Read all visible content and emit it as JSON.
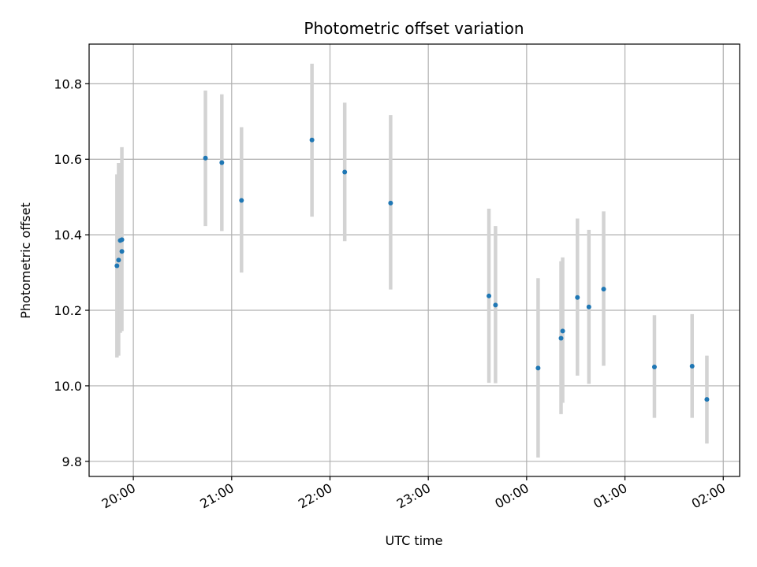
{
  "chart_data": {
    "type": "scatter",
    "title": "Photometric offset variation",
    "xlabel": "UTC time",
    "ylabel": "Photometric offset",
    "grid": true,
    "colors": {
      "point": "#1f77b4",
      "errorbar": "#d3d3d3",
      "grid": "#b0b0b0"
    },
    "x_ticks": [
      "20:00",
      "21:00",
      "22:00",
      "23:00",
      "00:00",
      "01:00",
      "02:00"
    ],
    "y_ticks": [
      "9.8",
      "10.0",
      "10.2",
      "10.4",
      "10.6",
      "10.8"
    ],
    "xlim": [
      "19:33",
      "02:10"
    ],
    "ylim": [
      9.76,
      10.905
    ],
    "points": [
      {
        "time": "19:50",
        "y": 10.318,
        "err_low": 10.075,
        "err_high": 10.56
      },
      {
        "time": "19:51",
        "y": 10.333,
        "err_low": 10.08,
        "err_high": 10.59
      },
      {
        "time": "19:52",
        "y": 10.385,
        "err_low": 10.14,
        "err_high": 10.38
      },
      {
        "time": "19:53",
        "y": 10.387,
        "err_low": 10.145,
        "err_high": 10.632
      },
      {
        "time": "19:53",
        "y": 10.356,
        "err_low": 10.355,
        "err_high": 10.357
      },
      {
        "time": "20:44",
        "y": 10.603,
        "err_low": 10.423,
        "err_high": 10.782
      },
      {
        "time": "20:54",
        "y": 10.591,
        "err_low": 10.41,
        "err_high": 10.772
      },
      {
        "time": "21:06",
        "y": 10.491,
        "err_low": 10.3,
        "err_high": 10.685
      },
      {
        "time": "21:49",
        "y": 10.651,
        "err_low": 10.448,
        "err_high": 10.853
      },
      {
        "time": "22:09",
        "y": 10.566,
        "err_low": 10.383,
        "err_high": 10.75
      },
      {
        "time": "22:37",
        "y": 10.484,
        "err_low": 10.255,
        "err_high": 10.717
      },
      {
        "time": "23:37",
        "y": 10.238,
        "err_low": 10.008,
        "err_high": 10.469
      },
      {
        "time": "23:41",
        "y": 10.214,
        "err_low": 10.007,
        "err_high": 10.423
      },
      {
        "time": "00:07",
        "y": 10.047,
        "err_low": 9.81,
        "err_high": 10.285
      },
      {
        "time": "00:21",
        "y": 10.126,
        "err_low": 9.925,
        "err_high": 10.33
      },
      {
        "time": "00:22",
        "y": 10.145,
        "err_low": 9.955,
        "err_high": 10.34
      },
      {
        "time": "00:31",
        "y": 10.234,
        "err_low": 10.027,
        "err_high": 10.443
      },
      {
        "time": "00:38",
        "y": 10.209,
        "err_low": 10.005,
        "err_high": 10.413
      },
      {
        "time": "00:47",
        "y": 10.256,
        "err_low": 10.053,
        "err_high": 10.462
      },
      {
        "time": "01:18",
        "y": 10.05,
        "err_low": 9.915,
        "err_high": 10.187
      },
      {
        "time": "01:41",
        "y": 10.052,
        "err_low": 9.915,
        "err_high": 10.19
      },
      {
        "time": "01:50",
        "y": 9.964,
        "err_low": 9.847,
        "err_high": 10.08
      }
    ]
  }
}
